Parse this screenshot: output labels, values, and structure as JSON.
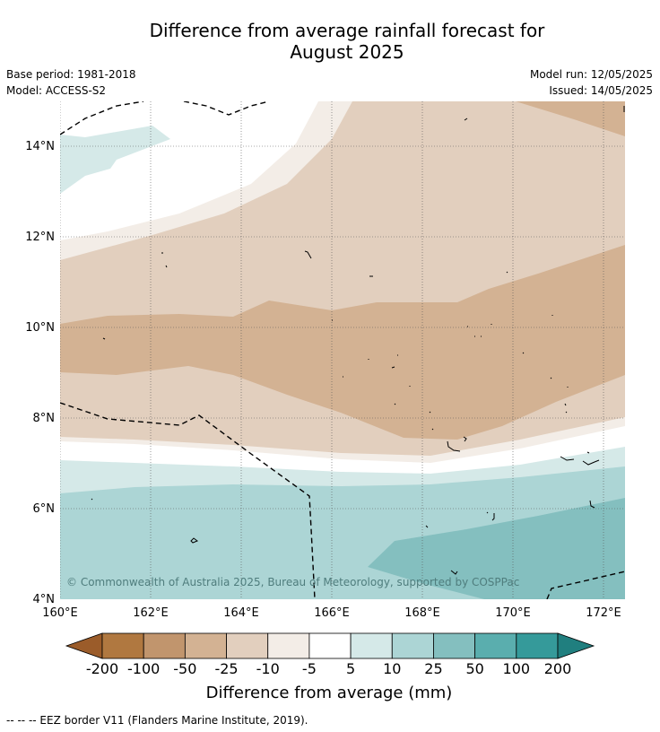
{
  "title_line1": "Difference from average rainfall forecast for",
  "title_line2": "August 2025",
  "base_period": "Base period: 1981-2018",
  "model": "Model: ACCESS-S2",
  "model_run": "Model run: 12/05/2025",
  "issued": "Issued: 14/05/2025",
  "copyright": "© Commonwealth of Australia 2025, Bureau of Meteorology, supported by COSPPac",
  "map": {
    "lon_range": [
      160,
      172.5
    ],
    "lat_range": [
      4,
      15
    ],
    "lon_ticks": [
      {
        "value": 160,
        "label": "160°E"
      },
      {
        "value": 162,
        "label": "162°E"
      },
      {
        "value": 164,
        "label": "164°E"
      },
      {
        "value": 166,
        "label": "166°E"
      },
      {
        "value": 168,
        "label": "168°E"
      },
      {
        "value": 170,
        "label": "170°E"
      },
      {
        "value": 172,
        "label": "172°E"
      }
    ],
    "lat_ticks": [
      {
        "value": 4,
        "label": "4°N"
      },
      {
        "value": 6,
        "label": "6°N"
      },
      {
        "value": 8,
        "label": "8°N"
      },
      {
        "value": 10,
        "label": "10°N"
      },
      {
        "value": 12,
        "label": "12°N"
      },
      {
        "value": 14,
        "label": "14°N"
      }
    ],
    "gridlines": "dotted"
  },
  "colorbar": {
    "label": "Difference from average (mm)",
    "tick_labels": [
      "-200",
      "-100",
      "-50",
      "-25",
      "-10",
      "-5",
      "5",
      "10",
      "25",
      "50",
      "100",
      "200"
    ],
    "colors": [
      "#9b5c2a",
      "#b07840",
      "#c1956d",
      "#d3b293",
      "#e2cfbe",
      "#f3ede7",
      "#ffffff",
      "#d5e9e8",
      "#acd5d5",
      "#84bfbf",
      "#5aaeae",
      "#359a9a",
      "#207f7f"
    ]
  },
  "footnote": "--  --  -- EEZ border V11 (Flanders Marine Institute, 2019)."
}
